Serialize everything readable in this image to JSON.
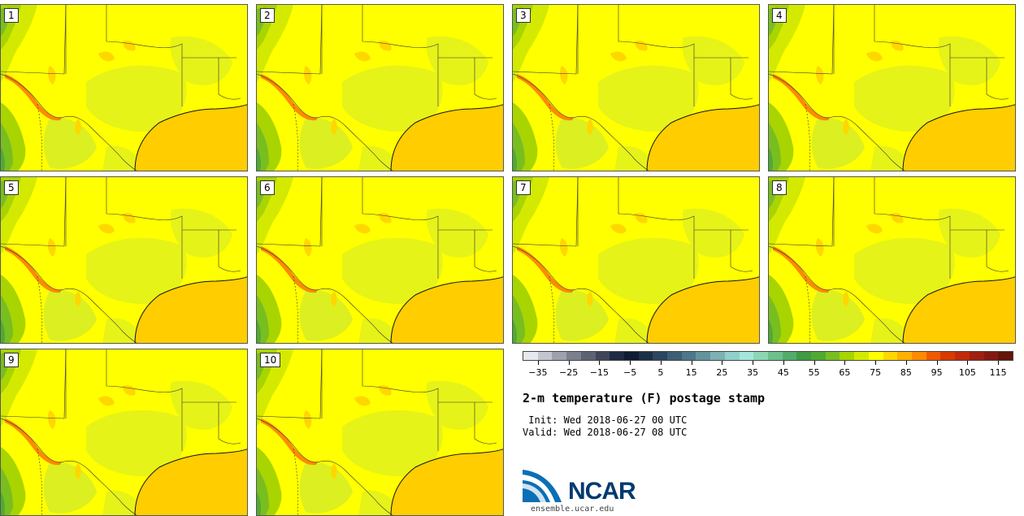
{
  "panels": [
    "1",
    "2",
    "3",
    "4",
    "5",
    "6",
    "7",
    "8",
    "9",
    "10"
  ],
  "colorbar": {
    "colors": [
      "#e6e8ee",
      "#c3c6cf",
      "#9ea2ae",
      "#7c808d",
      "#5d6373",
      "#3f4658",
      "#1f2b44",
      "#101c33",
      "#1b2f48",
      "#2b4660",
      "#3c5f76",
      "#4e7889",
      "#64939d",
      "#7db1b4",
      "#92cfcb",
      "#a3e6db",
      "#8cd6b4",
      "#6cc08e",
      "#52ad6b",
      "#3f9b44",
      "#4faa32",
      "#78be20",
      "#a8d400",
      "#d3ea00",
      "#ffff00",
      "#ffd700",
      "#ffb000",
      "#ff8a00",
      "#ef5a00",
      "#d83a00",
      "#c12a0a",
      "#a11f10",
      "#821a12",
      "#641509"
    ],
    "tick_labels": [
      "-35",
      "-25",
      "-15",
      "-5",
      "5",
      "15",
      "25",
      "35",
      "45",
      "55",
      "65",
      "75",
      "85",
      "95",
      "105",
      "115"
    ],
    "min": -40,
    "max": 120
  },
  "title": "2-m temperature (F) postage stamp",
  "init_label": " Init: Wed 2018-06-27 00 UTC",
  "valid_label": "Valid: Wed 2018-06-27 08 UTC",
  "logo": {
    "name": "NCAR",
    "url": "ensemble.ucar.edu"
  }
}
